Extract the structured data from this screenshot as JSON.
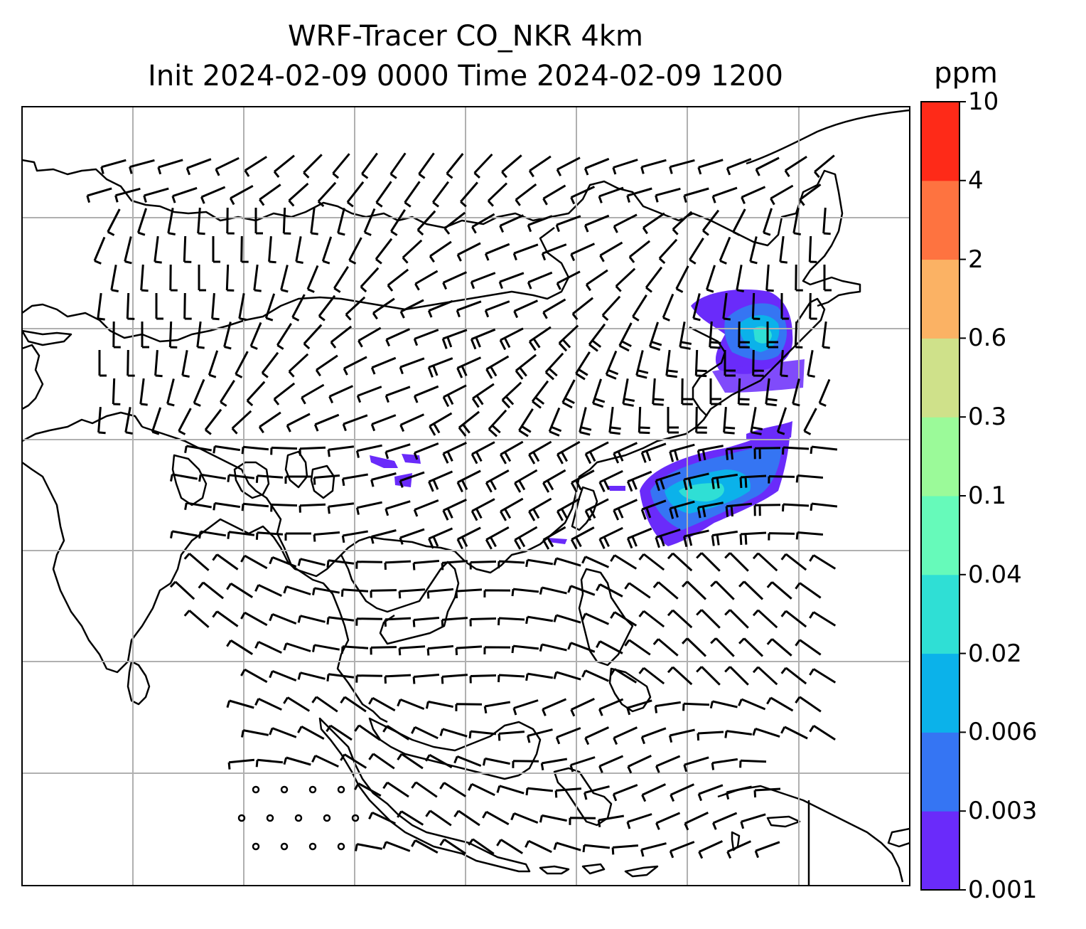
{
  "title": {
    "line1": "WRF-Tracer CO_NKR 4km",
    "line2": "Init 2024-02-09 0000 Time 2024-02-09 1200"
  },
  "colorbar": {
    "unit": "ppm",
    "levels": [
      "0.001",
      "0.003",
      "0.006",
      "0.02",
      "0.04",
      "0.1",
      "0.3",
      "0.6",
      "2",
      "4",
      "10"
    ],
    "colors": [
      "#6a2bfa",
      "#3575f3",
      "#0bb2ea",
      "#2fdfd5",
      "#66faba",
      "#9bfa99",
      "#cfe18a",
      "#fbb264",
      "#fe7340",
      "#fe2a18"
    ]
  },
  "map": {
    "gridlines": true,
    "coastline_color": "#000000",
    "grid_color": "#b0b0b0"
  }
}
